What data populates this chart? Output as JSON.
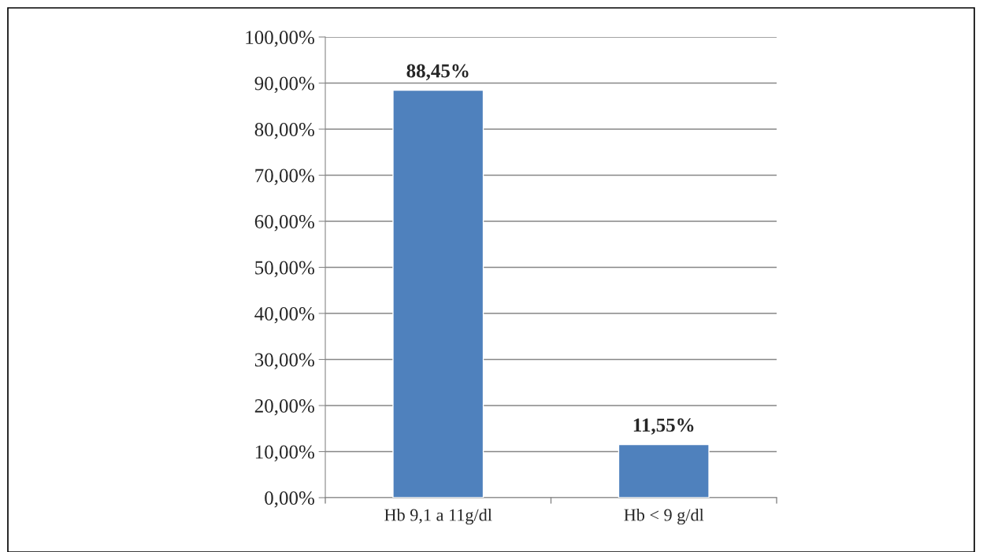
{
  "chart_data": {
    "type": "bar",
    "categories": [
      "Hb 9,1 a 11g/dl",
      "Hb < 9 g/dl"
    ],
    "values": [
      88.45,
      11.55
    ],
    "value_labels": [
      "88,45%",
      "11,55%"
    ],
    "color": "#4f81bd",
    "ylim": [
      0,
      100
    ],
    "yticks": [
      {
        "value": 0,
        "label": "0,00%"
      },
      {
        "value": 10,
        "label": "10,00%"
      },
      {
        "value": 20,
        "label": "20,00%"
      },
      {
        "value": 30,
        "label": "30,00%"
      },
      {
        "value": 40,
        "label": "40,00%"
      },
      {
        "value": 50,
        "label": "50,00%"
      },
      {
        "value": 60,
        "label": "60,00%"
      },
      {
        "value": 70,
        "label": "70,00%"
      },
      {
        "value": 80,
        "label": "80,00%"
      },
      {
        "value": 90,
        "label": "90,00%"
      },
      {
        "value": 100,
        "label": "100,00%"
      }
    ],
    "grid": "y",
    "legend": false
  }
}
